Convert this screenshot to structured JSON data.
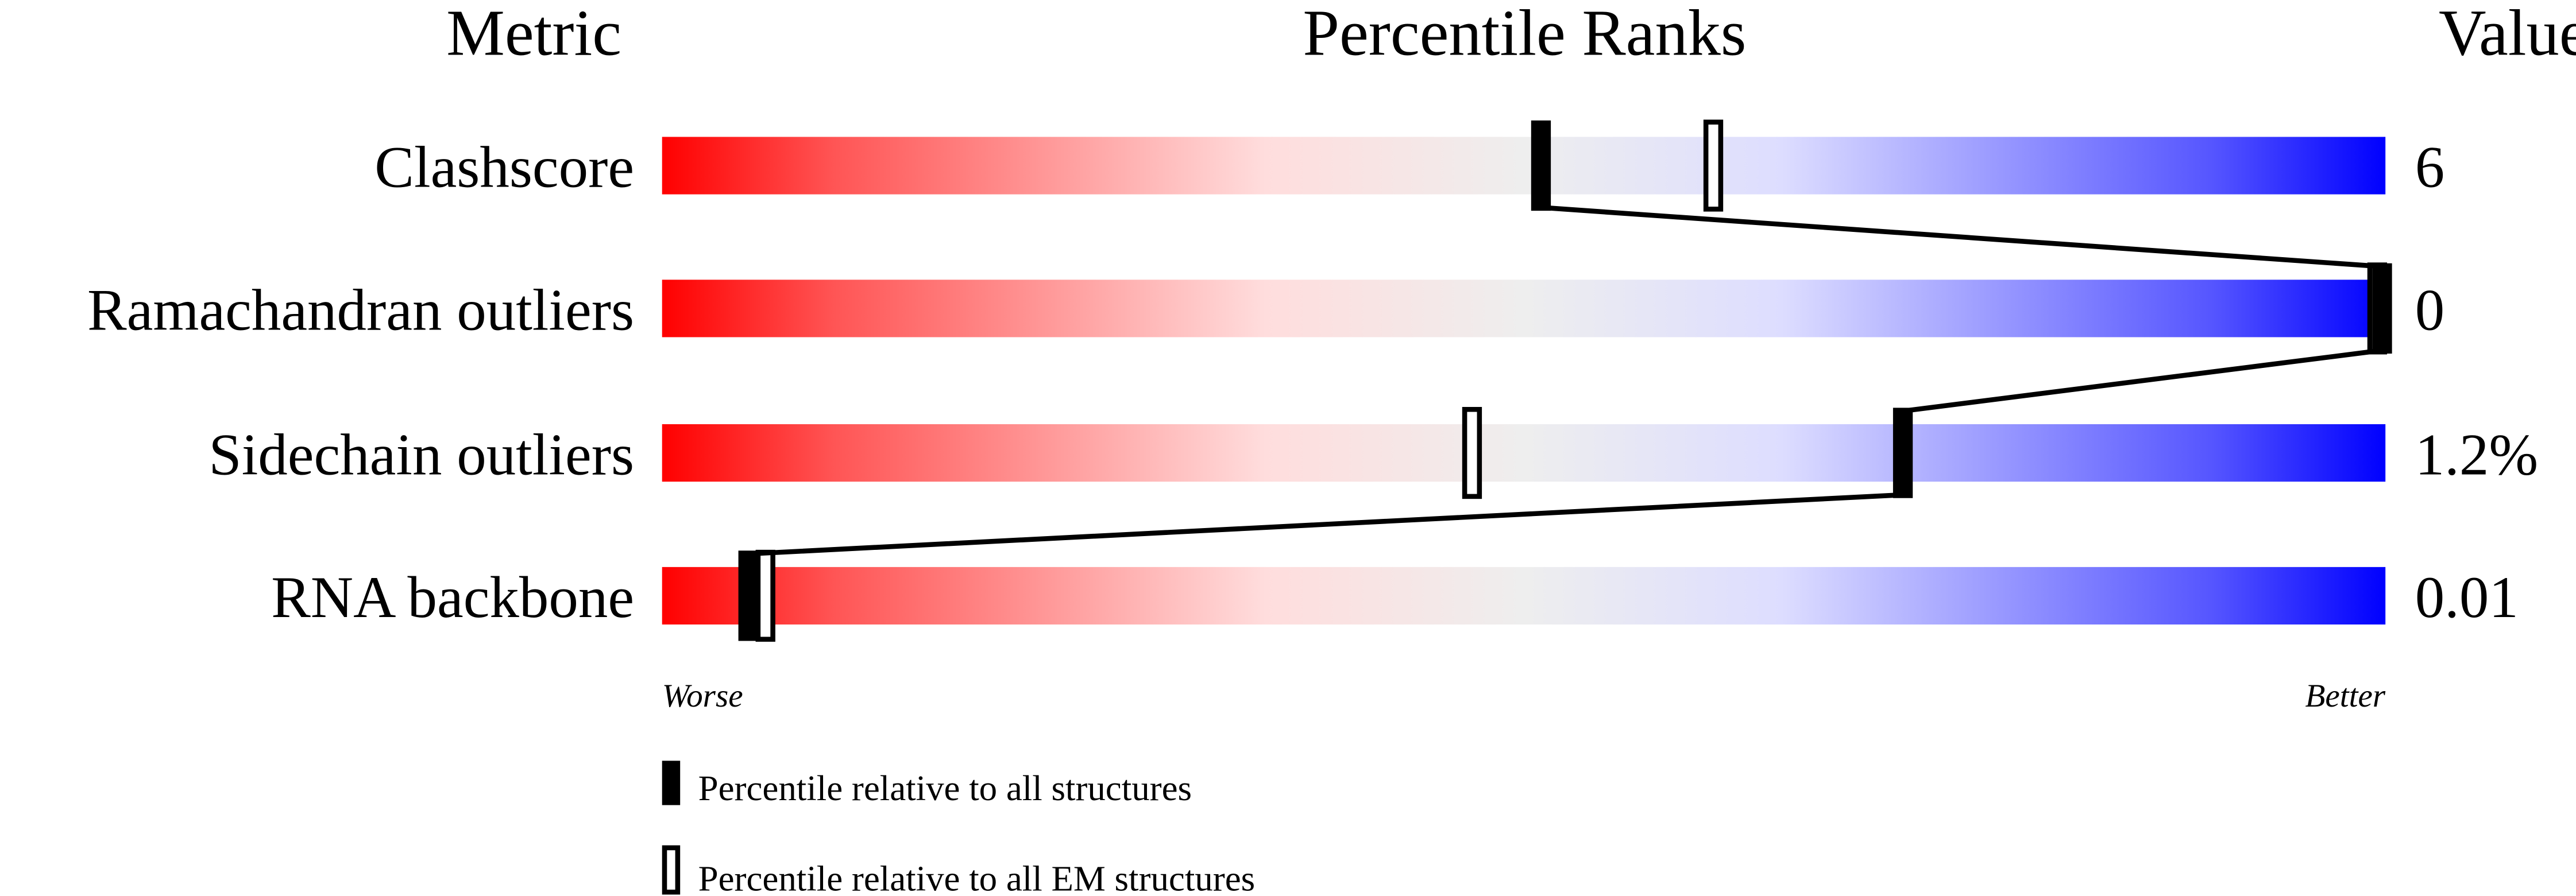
{
  "chart_data": {
    "type": "percentile-slider",
    "headers": {
      "metric": "Metric",
      "ranks": "Percentile Ranks",
      "value": "Value"
    },
    "axis": {
      "left_label": "Worse",
      "right_label": "Better",
      "range": [
        0,
        100
      ]
    },
    "metrics": [
      {
        "name": "Clashscore",
        "value": "6",
        "percentile_all": 51,
        "percentile_em": 61
      },
      {
        "name": "Ramachandran outliers",
        "value": "0",
        "percentile_all": 100,
        "percentile_em": 100
      },
      {
        "name": "Sidechain outliers",
        "value": "1.2%",
        "percentile_all": 72,
        "percentile_em": 47
      },
      {
        "name": "RNA backbone",
        "value": "0.01",
        "percentile_all": 5,
        "percentile_em": 6
      }
    ],
    "legend": [
      {
        "label": "Percentile relative to all structures",
        "marker": "filled"
      },
      {
        "label": "Percentile relative to all EM structures",
        "marker": "hollow"
      }
    ],
    "colors": {
      "worse": "#ff0000",
      "middle": "#eeeeee",
      "better": "#0000ff"
    }
  }
}
